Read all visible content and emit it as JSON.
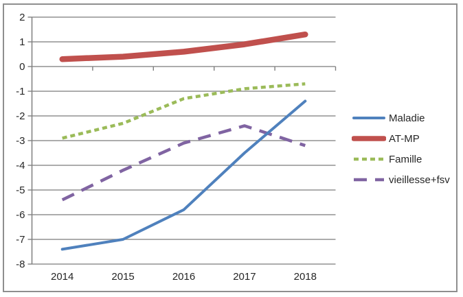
{
  "window": {
    "background": "#ffffff",
    "border_color": "#8e8e8e"
  },
  "chart_data": {
    "type": "line",
    "title": "",
    "xlabel": "",
    "ylabel": "",
    "categories": [
      "2014",
      "2015",
      "2016",
      "2017",
      "2018"
    ],
    "series": [
      {
        "name": "Maladie",
        "color": "#4F81BD",
        "line_style": "solid",
        "line_width": 4,
        "values": [
          -7.4,
          -7.0,
          -5.8,
          -3.5,
          -1.4
        ]
      },
      {
        "name": "AT-MP",
        "color": "#C0504D",
        "line_style": "solid",
        "line_width": 8.5,
        "values": [
          0.3,
          0.4,
          0.6,
          0.9,
          1.3
        ]
      },
      {
        "name": "Famille",
        "color": "#9BBB59",
        "line_style": "dash-short",
        "line_width": 4.5,
        "values": [
          -2.9,
          -2.3,
          -1.3,
          -0.9,
          -0.7
        ]
      },
      {
        "name": "vieillesse+fsv",
        "color": "#8064A2",
        "line_style": "dash-long",
        "line_width": 4.5,
        "values": [
          -5.4,
          -4.2,
          -3.1,
          -2.4,
          -3.2
        ]
      }
    ],
    "y_axis": {
      "min": -8,
      "max": 2,
      "step": 1,
      "tick_labels": [
        "2",
        "1",
        "0",
        "-1",
        "-2",
        "-3",
        "-4",
        "-5",
        "-6",
        "-7",
        "-8"
      ]
    },
    "grid": true,
    "gridline_color": "#919191",
    "axis_color": "#7f7f7f",
    "label_color": "#262626",
    "legend_position": "right"
  },
  "legend": {
    "items": [
      {
        "label": "Maladie"
      },
      {
        "label": "AT-MP"
      },
      {
        "label": "Famille"
      },
      {
        "label": "vieillesse+fsv"
      }
    ]
  }
}
